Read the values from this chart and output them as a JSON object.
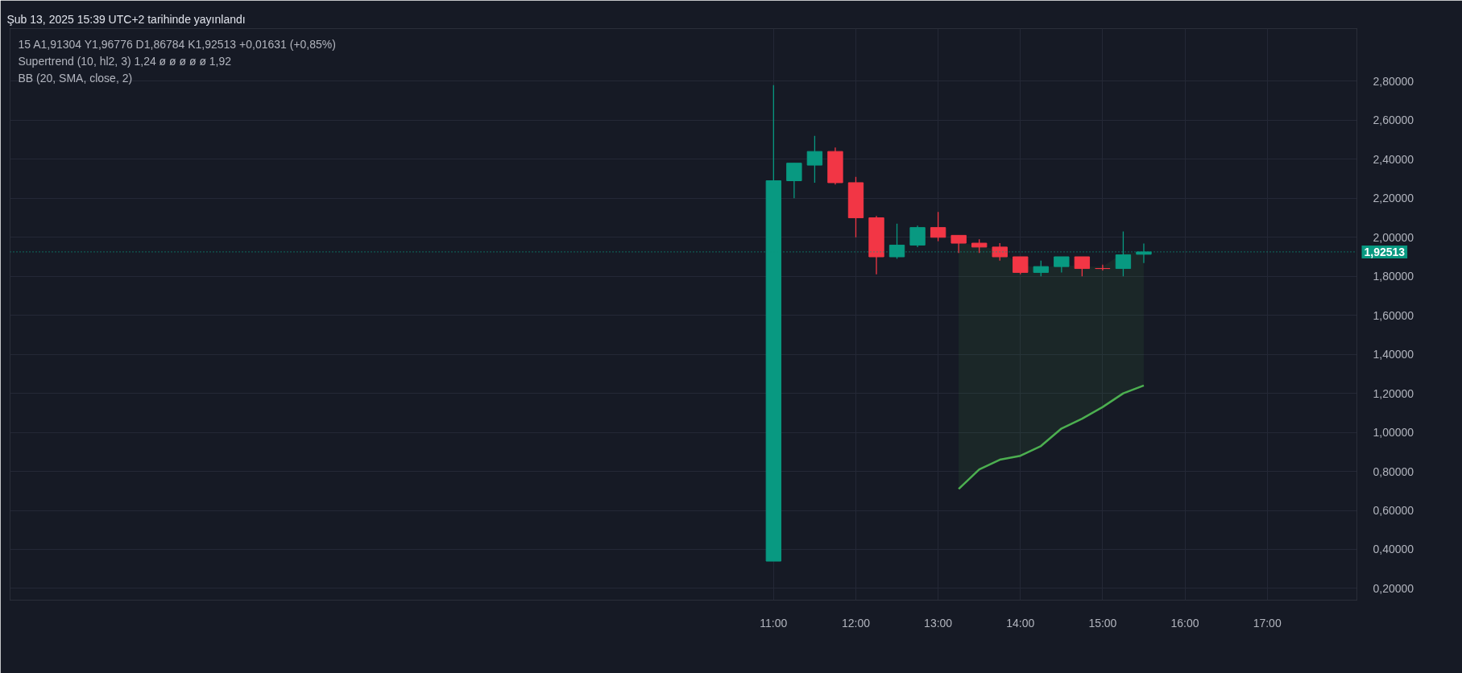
{
  "chart_data": {
    "type": "candlestick",
    "title": "15 A1,91304 Y1,96776 D1,86784 K1,92513 +0,01631 (+0,85%)",
    "subtitle": "Supertrend (10, hl2, 3) 1,24 ø ø ø ø ø 1,92",
    "annotations": [
      "Şub 13, 2025 15:39 UTC+2 tarihinde yayınlandı",
      "BB (20, SMA, close, 2)"
    ],
    "x": [
      11,
      11.25,
      11.5,
      11.75,
      12,
      12.25,
      12.5,
      12.75,
      13,
      13.25,
      13.5,
      13.75,
      14,
      14.25,
      14.5,
      14.75,
      15,
      15.25,
      15.5
    ],
    "ohlc": [
      [
        0.34,
        2.78,
        0.34,
        2.29
      ],
      [
        2.29,
        2.38,
        2.2,
        2.38
      ],
      [
        2.37,
        2.52,
        2.28,
        2.44
      ],
      [
        2.44,
        2.46,
        2.27,
        2.28
      ],
      [
        2.28,
        2.31,
        2.0,
        2.1
      ],
      [
        2.1,
        2.11,
        1.81,
        1.9
      ],
      [
        1.9,
        2.07,
        1.89,
        1.96
      ],
      [
        1.96,
        2.06,
        1.95,
        2.05
      ],
      [
        2.05,
        2.13,
        1.98,
        2.0
      ],
      [
        2.01,
        2.01,
        1.92,
        1.97
      ],
      [
        1.97,
        1.99,
        1.92,
        1.95
      ],
      [
        1.95,
        1.97,
        1.88,
        1.9
      ],
      [
        1.9,
        1.9,
        1.81,
        1.82
      ],
      [
        1.82,
        1.88,
        1.8,
        1.85
      ],
      [
        1.85,
        1.9,
        1.82,
        1.9
      ],
      [
        1.9,
        1.9,
        1.8,
        1.84
      ],
      [
        1.84,
        1.86,
        1.83,
        1.84
      ],
      [
        1.84,
        2.03,
        1.8,
        1.91
      ],
      [
        1.91304,
        1.96776,
        1.86784,
        1.92513
      ]
    ],
    "colors": [
      "#089981",
      "#089981",
      "#089981",
      "#f23645",
      "#f23645",
      "#f23645",
      "#089981",
      "#089981",
      "#f23645",
      "#f23645",
      "#f23645",
      "#f23645",
      "#f23645",
      "#089981",
      "#089981",
      "#f23645",
      "#f23645",
      "#089981",
      "#089981"
    ],
    "series": [
      {
        "type": "line",
        "color": "#4caf50",
        "x": [
          13.25,
          13.5,
          13.75,
          14,
          14.25,
          14.5,
          14.75,
          15,
          15.25,
          15.5
        ],
        "values": [
          0.71,
          0.81,
          0.86,
          0.88,
          0.93,
          1.02,
          1.07,
          1.13,
          1.2,
          1.24
        ],
        "lower": [
          0.71,
          0.81,
          0.86,
          0.88,
          0.93,
          1.02,
          1.07,
          1.13,
          1.2,
          1.24
        ],
        "upper": [
          1.97,
          1.96,
          1.93,
          1.86,
          1.84,
          1.86,
          1.85,
          1.85,
          1.92,
          1.92
        ]
      }
    ],
    "ref_lines": [
      {
        "axis": "y",
        "value": 1.92513,
        "label": "1,92513",
        "color": "#089981",
        "line_style": "dotted"
      }
    ],
    "xlim": [
      1.72,
      18.09
    ],
    "xticks": [
      {
        "value": 11,
        "label": "11:00"
      },
      {
        "value": 12,
        "label": "12:00"
      },
      {
        "value": 13,
        "label": "13:00"
      },
      {
        "value": 14,
        "label": "14:00"
      },
      {
        "value": 15,
        "label": "15:00"
      },
      {
        "value": 16,
        "label": "16:00"
      },
      {
        "value": 17,
        "label": "17:00"
      }
    ],
    "ylim": [
      0.14,
      3.07
    ],
    "yticks": [
      {
        "value": 0.2,
        "label": "0,20000"
      },
      {
        "value": 0.4,
        "label": "0,40000"
      },
      {
        "value": 0.6,
        "label": "0,60000"
      },
      {
        "value": 0.8,
        "label": "0,80000"
      },
      {
        "value": 1.0,
        "label": "1,00000"
      },
      {
        "value": 1.2,
        "label": "1,20000"
      },
      {
        "value": 1.4,
        "label": "1,40000"
      },
      {
        "value": 1.6,
        "label": "1,60000"
      },
      {
        "value": 1.8,
        "label": "1,80000"
      },
      {
        "value": 2.0,
        "label": "2,00000"
      },
      {
        "value": 2.2,
        "label": "2,20000"
      },
      {
        "value": 2.4,
        "label": "2,40000"
      },
      {
        "value": 2.6,
        "label": "2,60000"
      },
      {
        "value": 2.8,
        "label": "2,80000"
      }
    ],
    "grid": true
  }
}
